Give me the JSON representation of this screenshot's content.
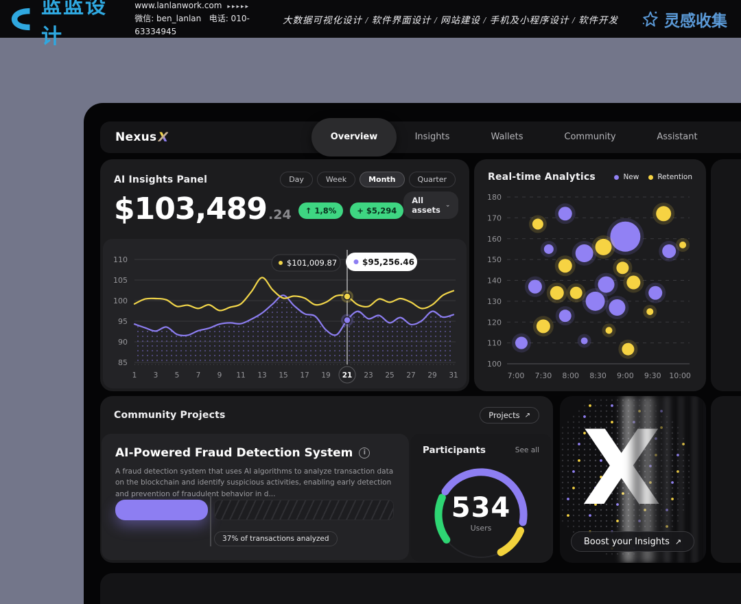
{
  "banner": {
    "logo_text": "蓝蓝设计",
    "website": "www.lanlanwork.com",
    "website_arrows": "▸▸▸▸▸",
    "wechat": "微信: ben_lanlan",
    "phone": "电话: 010-63334945",
    "services": "大数据可视化设计 / 软件界面设计 / 网站建设 / 手机及小程序设计 / 软件开发",
    "collect_label": "灵感收集",
    "brand_blue": "#2fa8e0",
    "collect_blue": "#5b9ad8"
  },
  "nav": {
    "brand": "Nexus",
    "brand_x": "X",
    "items": [
      {
        "label": "Overview",
        "active": true
      },
      {
        "label": "Insights",
        "active": false
      },
      {
        "label": "Wallets",
        "active": false
      },
      {
        "label": "Community",
        "active": false
      },
      {
        "label": "Assistant",
        "active": false
      }
    ]
  },
  "insights_panel": {
    "title": "AI Insights Panel",
    "range_tabs": [
      "Day",
      "Week",
      "Month",
      "Quarter"
    ],
    "active_tab": "Month",
    "value_main": "$103,489",
    "value_cents": ".24",
    "change_percent": "↑ 1,8%",
    "change_amount": "+ $5,294",
    "assets_dropdown": "All assets",
    "chevron_down_icon": "⌄"
  },
  "analytics_panel": {
    "title": "Real-time Analytics",
    "legend": [
      {
        "label": "New",
        "color": "#9181f4"
      },
      {
        "label": "Retention",
        "color": "#f6d343"
      }
    ]
  },
  "community_panel": {
    "title": "Community Projects",
    "projects_button": "Projects",
    "arrow_up_right_icon": "↗",
    "project": {
      "title": "AI-Powered Fraud Detection System",
      "info_icon": "i",
      "description": "A fraud detection system that uses AI algorithms to analyze transaction data on the blockchain and identify suspicious activities, enabling early detection and prevention of fraudulent behavior in d...",
      "progress_percent": 37,
      "progress_label": "37% of transactions analyzed"
    },
    "participants": {
      "title": "Participants",
      "see_all": "See all",
      "count": "534",
      "unit": "Users",
      "gauge": {
        "track_color": "#26262a",
        "arcs": [
          {
            "color": "#2ed573",
            "start": -126,
            "end": -66
          },
          {
            "color": "#8d7ef2",
            "start": -57,
            "end": 100
          },
          {
            "color": "#f2d23c",
            "start": 112,
            "end": 152
          }
        ]
      }
    }
  },
  "boost_card": {
    "letter": "X",
    "button": "Boost your Insights",
    "arrow_up_right_icon": "↗"
  },
  "chart_data": [
    {
      "type": "line",
      "title": "",
      "x": [
        1,
        2,
        3,
        4,
        5,
        6,
        7,
        8,
        9,
        10,
        11,
        12,
        13,
        14,
        15,
        16,
        17,
        18,
        19,
        20,
        21,
        22,
        23,
        24,
        25,
        26,
        27,
        28,
        29,
        30,
        31
      ],
      "series": [
        {
          "name": "series-yellow",
          "color": "#f2d64a",
          "values": [
            99.2,
            100.4,
            100.5,
            100.2,
            98.6,
            98.9,
            98.1,
            99.0,
            97.6,
            98.4,
            99.2,
            102.2,
            105.6,
            102.6,
            100.6,
            101.1,
            100.6,
            99.0,
            99.6,
            101.2,
            101.0,
            99.0,
            98.6,
            100.4,
            99.6,
            100.5,
            99.6,
            98.1,
            99.0,
            101.3,
            102.4
          ]
        },
        {
          "name": "series-purple",
          "color": "#8d7ef2",
          "area_dotted": true,
          "values": [
            94.3,
            93.4,
            92.6,
            93.6,
            91.8,
            91.6,
            92.7,
            93.3,
            94.3,
            94.6,
            94.4,
            95.5,
            97.0,
            99.2,
            101.3,
            98.8,
            96.8,
            96.2,
            92.9,
            91.7,
            95.3,
            97.4,
            95.6,
            96.4,
            94.6,
            95.9,
            94.2,
            95.1,
            97.4,
            96.0,
            96.6
          ]
        }
      ],
      "ylim": [
        85,
        110
      ],
      "yticks": [
        110,
        105,
        100,
        95,
        90,
        85
      ],
      "xticks": [
        1,
        3,
        5,
        7,
        9,
        11,
        13,
        15,
        17,
        19,
        21,
        23,
        25,
        27,
        29,
        31
      ],
      "highlight": {
        "x": 21,
        "points": [
          {
            "value": 101.0,
            "color": "#f2d64a"
          },
          {
            "value": 95.26,
            "color": "#8d7ef2"
          }
        ],
        "tooltips": [
          {
            "text": "$101,009.87",
            "dot": "#f2d64a",
            "style": "dark"
          },
          {
            "text": "$95,256.46",
            "dot": "#8d7ef2",
            "style": "light"
          }
        ]
      }
    },
    {
      "type": "scatter",
      "title": "Real-time Analytics",
      "xticks": [
        "7:00",
        "7:30",
        "8:00",
        "8:30",
        "9:00",
        "9:30",
        "10:00"
      ],
      "x_hours": [
        7,
        7.5,
        8,
        8.5,
        9,
        9.5,
        10
      ],
      "yticks": [
        180,
        170,
        160,
        150,
        140,
        130,
        120,
        110,
        100
      ],
      "ylim": [
        100,
        185
      ],
      "series": [
        {
          "name": "New",
          "color": "#9181f4",
          "points": [
            [
              7.1,
              110,
              9
            ],
            [
              7.35,
              137,
              10
            ],
            [
              7.6,
              155,
              7
            ],
            [
              7.9,
              172,
              10
            ],
            [
              7.9,
              123,
              9
            ],
            [
              8.25,
              153,
              13
            ],
            [
              8.25,
              111,
              5
            ],
            [
              8.45,
              130,
              14
            ],
            [
              8.65,
              138,
              12
            ],
            [
              8.85,
              127,
              12
            ],
            [
              9.0,
              161,
              22
            ],
            [
              9.55,
              134,
              10
            ],
            [
              9.8,
              154,
              10
            ]
          ]
        },
        {
          "name": "Retention",
          "color": "#f6d343",
          "points": [
            [
              7.4,
              167,
              8
            ],
            [
              7.5,
              118,
              10
            ],
            [
              7.75,
              134,
              10
            ],
            [
              7.9,
              147,
              10
            ],
            [
              8.1,
              134,
              9
            ],
            [
              8.6,
              156,
              12
            ],
            [
              8.7,
              116,
              5
            ],
            [
              8.95,
              146,
              9
            ],
            [
              9.05,
              107,
              9
            ],
            [
              9.15,
              139,
              10
            ],
            [
              9.45,
              125,
              5
            ],
            [
              9.7,
              172,
              11
            ],
            [
              10.05,
              157,
              5
            ]
          ]
        }
      ]
    }
  ]
}
